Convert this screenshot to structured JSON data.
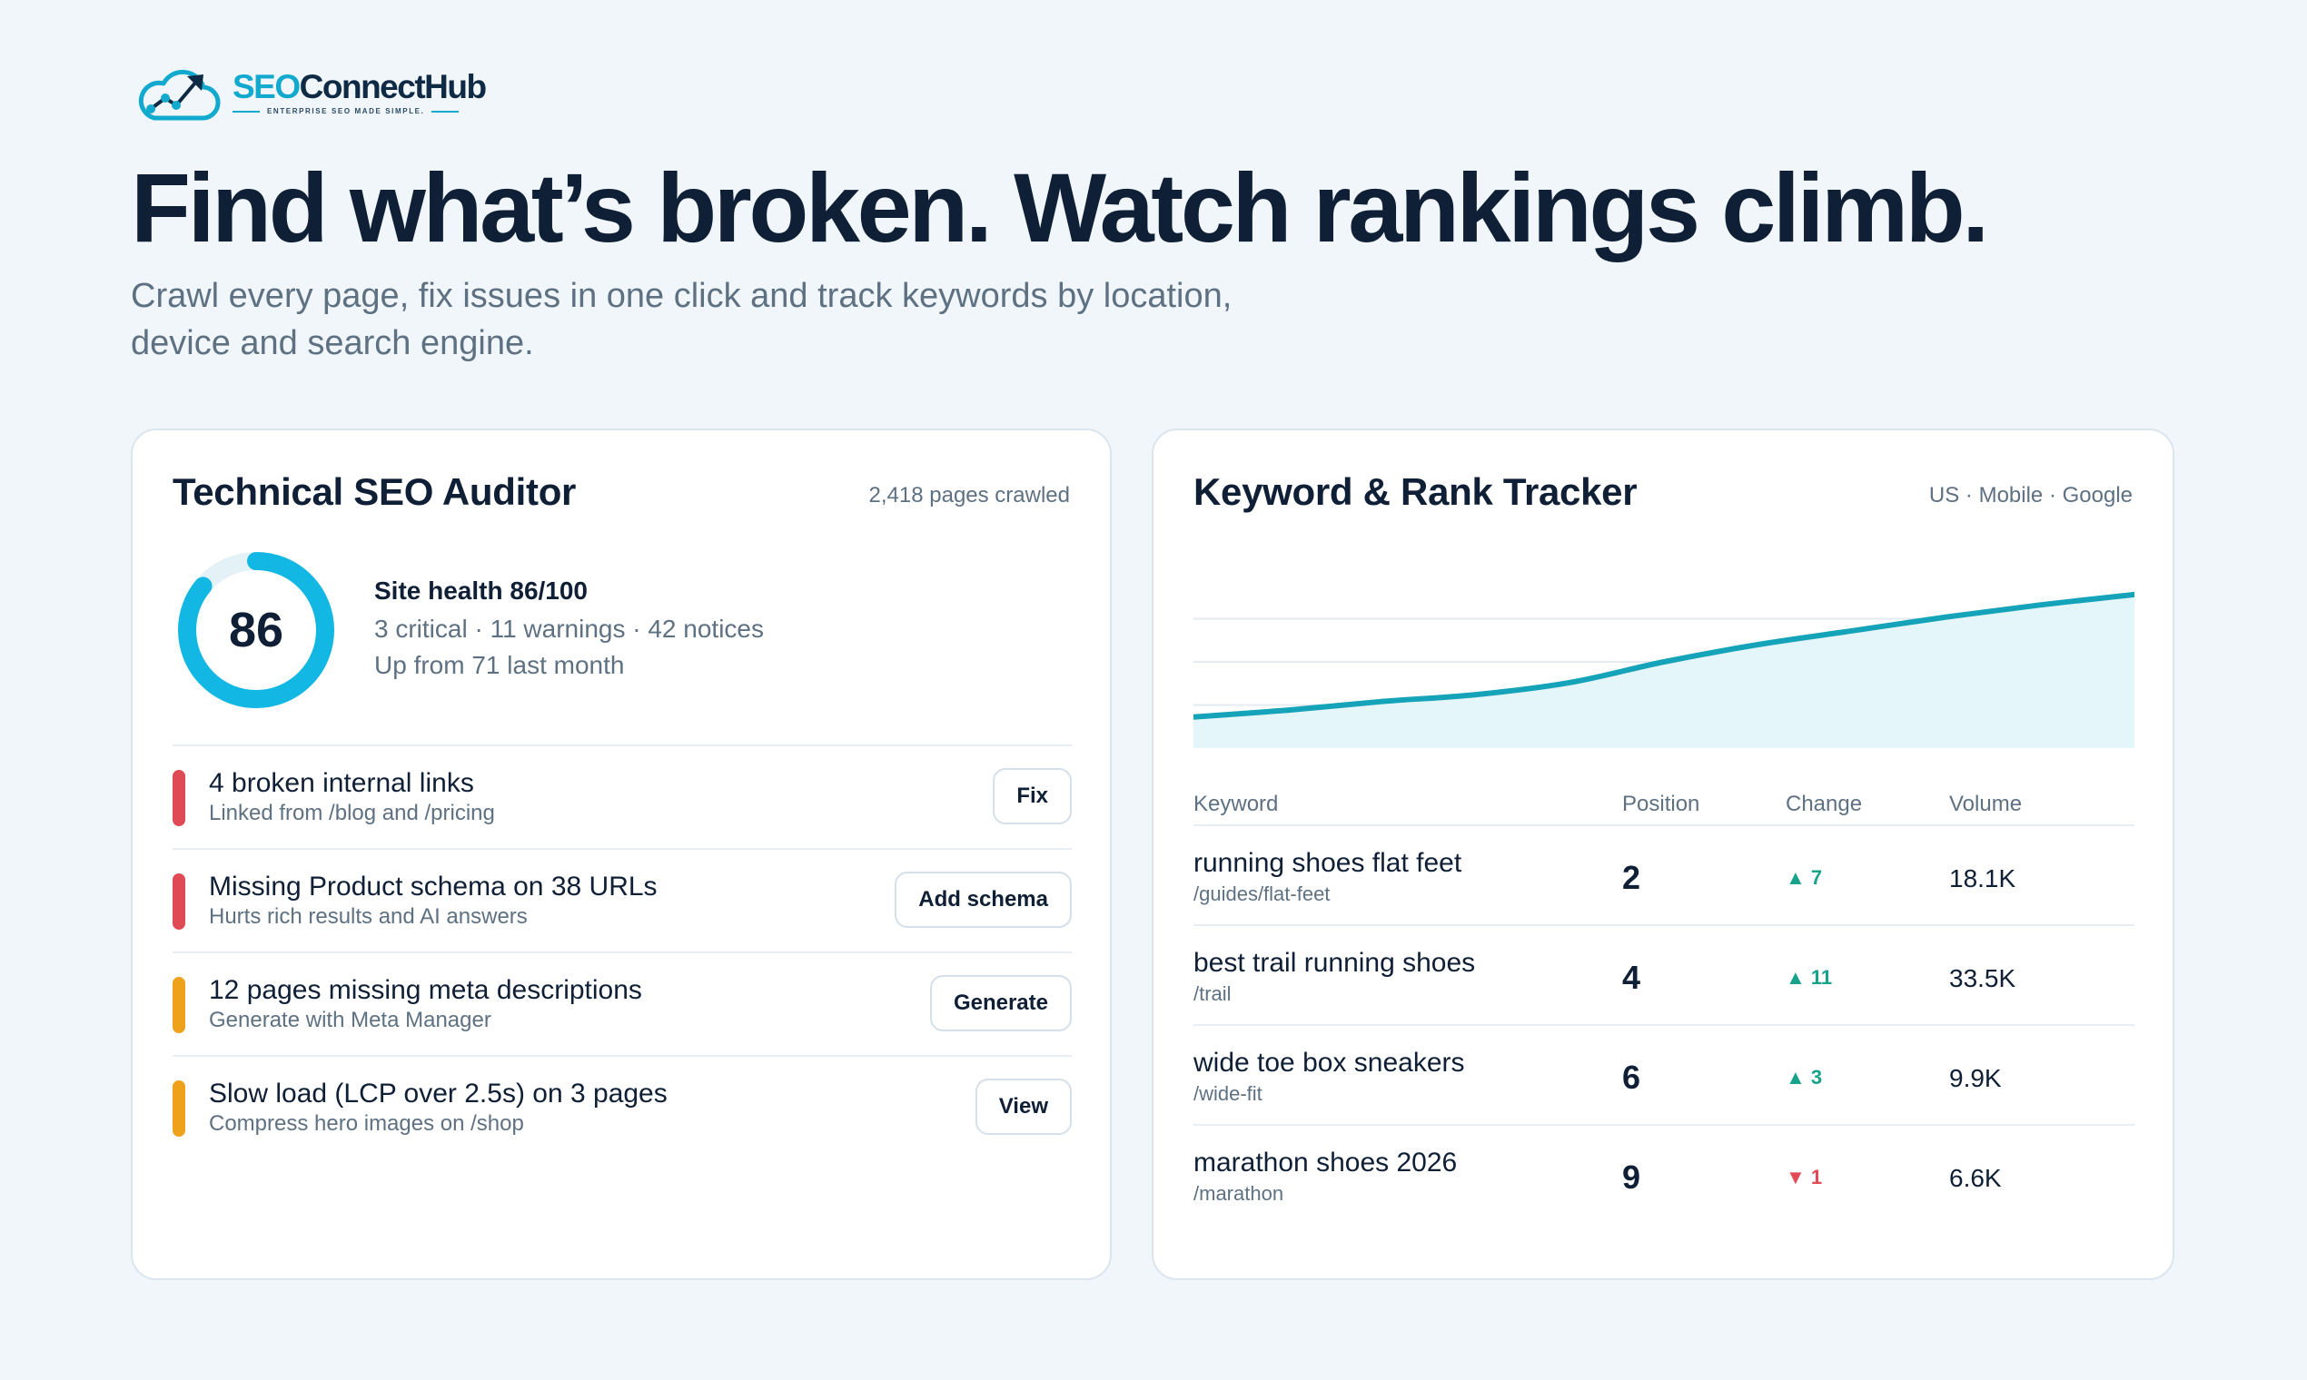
{
  "brand": {
    "name_part1": "SEO",
    "name_part2": "ConnectHub",
    "tagline": "ENTERPRISE SEO MADE SIMPLE.",
    "colors": {
      "accent": "#12a9cf",
      "navy": "#0f2a44"
    }
  },
  "hero": {
    "title": "Find what’s broken. Watch rankings climb.",
    "subtitle": "Crawl every page, fix issues in one click and track keywords by location, device and search engine."
  },
  "auditor": {
    "title": "Technical SEO Auditor",
    "meta": "2,418 pages crawled",
    "score": "86",
    "score_fraction": 0.86,
    "health_title": "Site health 86/100",
    "health_counts": "3 critical · 11 warnings · 42 notices",
    "health_trend": "Up from 71 last month",
    "issues": [
      {
        "title": "4 broken internal links",
        "subtitle": "Linked from /blog and /pricing",
        "action": "Fix",
        "severity": "critical",
        "color": "#e04a55"
      },
      {
        "title": "Missing Product schema on 38 URLs",
        "subtitle": "Hurts rich results and AI answers",
        "action": "Add schema",
        "severity": "critical",
        "color": "#e04a55"
      },
      {
        "title": "12 pages missing meta descriptions",
        "subtitle": "Generate with Meta Manager",
        "action": "Generate",
        "severity": "warning",
        "color": "#eea21b"
      },
      {
        "title": "Slow load (LCP over 2.5s) on 3 pages",
        "subtitle": "Compress hero images on /shop",
        "action": "View",
        "severity": "warning",
        "color": "#eea21b"
      }
    ]
  },
  "tracker": {
    "title": "Keyword & Rank Tracker",
    "meta": "US · Mobile · Google",
    "chart_data": {
      "type": "area",
      "x": [
        0,
        1,
        2,
        3,
        4,
        5,
        6,
        7,
        8,
        9,
        10
      ],
      "values": [
        18,
        22,
        27,
        31,
        38,
        50,
        60,
        68,
        76,
        83,
        89
      ],
      "ylim": [
        0,
        100
      ],
      "grid": true,
      "color": "#14a3b8",
      "fill": "#e4f6f9"
    },
    "columns": {
      "keyword": "Keyword",
      "position": "Position",
      "change": "Change",
      "volume": "Volume"
    },
    "rows": [
      {
        "keyword": "running shoes flat feet",
        "url": "/guides/flat-feet",
        "position": "2",
        "change": "▲ 7",
        "direction": "up",
        "volume": "18.1K"
      },
      {
        "keyword": "best trail running shoes",
        "url": "/trail",
        "position": "4",
        "change": "▲ 11",
        "direction": "up",
        "volume": "33.5K"
      },
      {
        "keyword": "wide toe box sneakers",
        "url": "/wide-fit",
        "position": "6",
        "change": "▲ 3",
        "direction": "up",
        "volume": "9.9K"
      },
      {
        "keyword": "marathon shoes 2026",
        "url": "/marathon",
        "position": "9",
        "change": "▼ 1",
        "direction": "down",
        "volume": "6.6K"
      }
    ]
  }
}
